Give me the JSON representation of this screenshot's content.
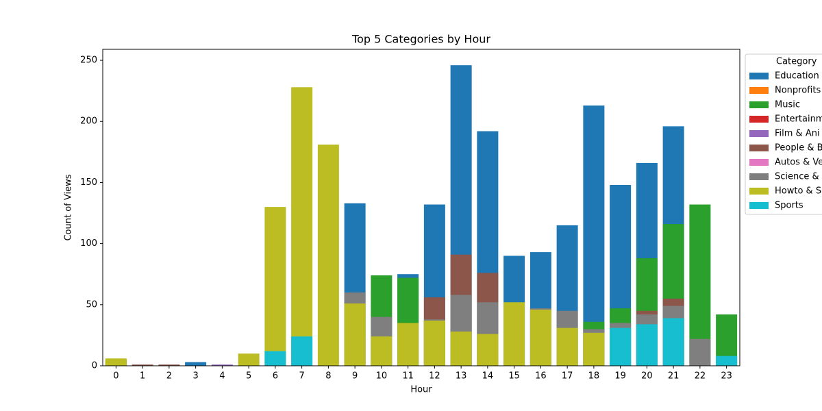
{
  "chart_data": {
    "type": "bar",
    "title": "Top 5 Categories by Hour",
    "x_label": "Hour",
    "y_label": "Count of Views",
    "legend_title": "Category",
    "legend_position": "right",
    "categories": [
      "0",
      "1",
      "2",
      "3",
      "4",
      "5",
      "6",
      "7",
      "8",
      "9",
      "10",
      "11",
      "12",
      "13",
      "14",
      "15",
      "16",
      "17",
      "18",
      "19",
      "20",
      "21",
      "22",
      "23"
    ],
    "ylim": [
      0,
      259
    ],
    "yticks": [
      0,
      50,
      100,
      150,
      200,
      250
    ],
    "series": [
      {
        "name": "Education",
        "color": "#1f77b4",
        "values": [
          null,
          null,
          null,
          3,
          null,
          null,
          null,
          null,
          null,
          133,
          null,
          75,
          132,
          246,
          192,
          90,
          93,
          115,
          213,
          148,
          166,
          196,
          null,
          null
        ]
      },
      {
        "name": "Nonprofits",
        "color": "#ff7f0e",
        "values": [
          null,
          null,
          null,
          null,
          null,
          null,
          null,
          null,
          null,
          null,
          null,
          null,
          null,
          null,
          null,
          null,
          null,
          null,
          null,
          null,
          null,
          null,
          null,
          null
        ]
      },
      {
        "name": "Music",
        "color": "#2ca02c",
        "values": [
          null,
          null,
          null,
          null,
          null,
          null,
          null,
          null,
          null,
          null,
          74,
          72,
          null,
          null,
          null,
          null,
          null,
          null,
          36,
          47,
          88,
          116,
          132,
          42
        ]
      },
      {
        "name": "Entertainm",
        "color": "#d62728",
        "values": [
          4,
          null,
          null,
          null,
          null,
          null,
          null,
          null,
          null,
          null,
          null,
          null,
          null,
          null,
          null,
          null,
          null,
          null,
          null,
          null,
          null,
          null,
          null,
          null
        ]
      },
      {
        "name": "Film & Ani",
        "color": "#9467bd",
        "values": [
          2,
          null,
          null,
          null,
          1,
          null,
          null,
          null,
          null,
          null,
          null,
          null,
          null,
          null,
          null,
          null,
          null,
          null,
          null,
          null,
          null,
          null,
          null,
          null
        ]
      },
      {
        "name": "People & B",
        "color": "#8c564b",
        "values": [
          5,
          1,
          1,
          null,
          null,
          null,
          null,
          null,
          null,
          null,
          null,
          null,
          56,
          91,
          76,
          null,
          null,
          null,
          null,
          null,
          45,
          55,
          null,
          null
        ]
      },
      {
        "name": "Autos & Ve",
        "color": "#e377c2",
        "values": [
          null,
          null,
          null,
          null,
          null,
          null,
          null,
          null,
          null,
          null,
          null,
          null,
          null,
          null,
          null,
          null,
          null,
          null,
          null,
          null,
          null,
          null,
          null,
          null
        ]
      },
      {
        "name": "Science &",
        "color": "#7f7f7f",
        "values": [
          null,
          null,
          null,
          null,
          null,
          null,
          null,
          null,
          null,
          60,
          40,
          null,
          38,
          58,
          52,
          null,
          47,
          45,
          30,
          35,
          42,
          49,
          22,
          null
        ]
      },
      {
        "name": "Howto & S",
        "color": "#bcbd22",
        "values": [
          6,
          null,
          null,
          null,
          null,
          10,
          130,
          228,
          181,
          51,
          24,
          35,
          37,
          28,
          26,
          52,
          46,
          31,
          27,
          null,
          null,
          null,
          null,
          null
        ]
      },
      {
        "name": "Sports",
        "color": "#17becf",
        "values": [
          null,
          null,
          null,
          null,
          null,
          null,
          12,
          24,
          null,
          null,
          null,
          null,
          null,
          null,
          null,
          null,
          null,
          null,
          null,
          31,
          34,
          39,
          null,
          8
        ]
      }
    ]
  }
}
